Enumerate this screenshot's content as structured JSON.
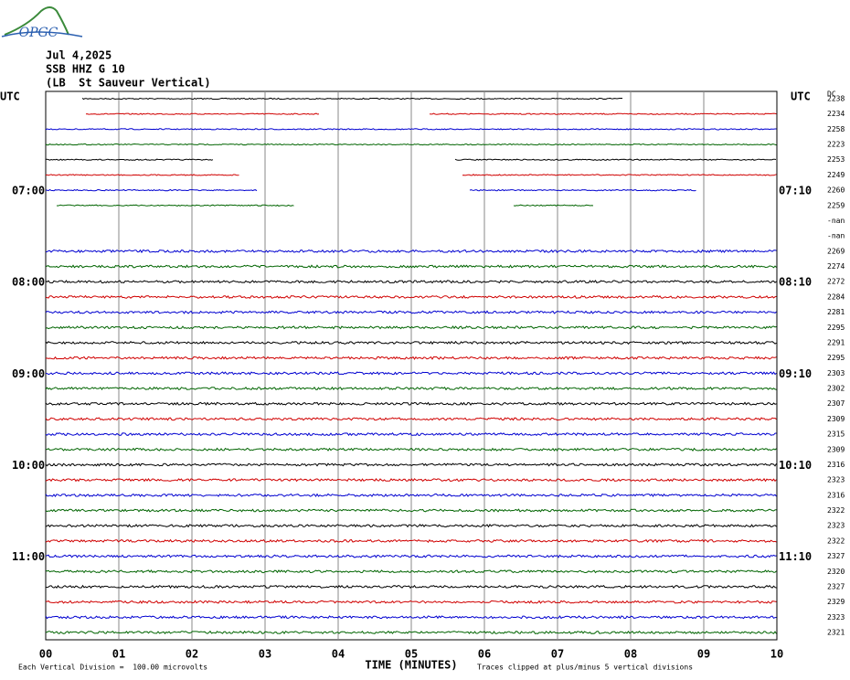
{
  "logo": "OPGC",
  "header": {
    "date": "Jul 4,2025",
    "station": "SSB HHZ G 10",
    "location": "(LB  St Sauveur Vertical)"
  },
  "left_axis_title": "UTC",
  "right_axis_title": "UTC",
  "dc_title": "DC",
  "left_times": [
    "07:00",
    "08:00",
    "09:00",
    "10:00",
    "11:00"
  ],
  "right_times": [
    "07:10",
    "08:10",
    "09:10",
    "10:10",
    "11:10"
  ],
  "x_ticks": [
    "00",
    "01",
    "02",
    "03",
    "04",
    "05",
    "06",
    "07",
    "08",
    "09",
    "10"
  ],
  "x_axis_title": "TIME (MINUTES)",
  "footer_left": "Each Vertical Division =  100.00 microvolts",
  "footer_right": "Traces clipped at plus/minus 5 vertical divisions",
  "dc_values": [
    "2238",
    "2234",
    "2258",
    "2223",
    "2253",
    "2249",
    "2260",
    "2259",
    "-nan",
    "-nan",
    "2269",
    "2274",
    "2272",
    "2284",
    "2281",
    "2295",
    "2291",
    "2295",
    "2303",
    "2302",
    "2307",
    "2309",
    "2315",
    "2309",
    "2316",
    "2323",
    "2316",
    "2322",
    "2323",
    "2322",
    "2327",
    "2320",
    "2327",
    "2329",
    "2323",
    "2321"
  ]
}
